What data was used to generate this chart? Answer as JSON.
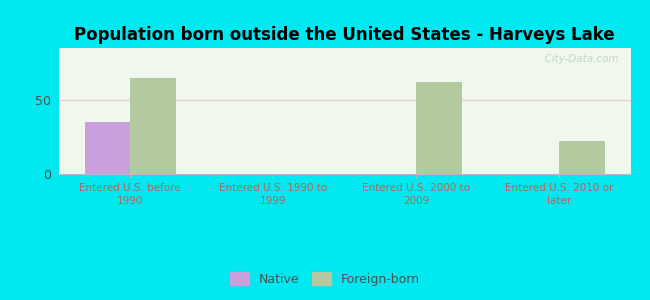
{
  "title": "Population born outside the United States - Harveys Lake",
  "categories": [
    "Entered U.S. before\n1990",
    "Entered U.S. 1990 to\n1999",
    "Entered U.S. 2000 to\n2009",
    "Entered U.S. 2010 or\nlater"
  ],
  "native_values": [
    35,
    0,
    0,
    0
  ],
  "foreign_values": [
    65,
    0,
    62,
    22
  ],
  "native_color": "#c9a0dc",
  "foreign_color": "#b5c9a0",
  "background_outer": "#00e8f0",
  "background_inner": "#f0f8ee",
  "ytick_value": 50,
  "ylim": [
    0,
    85
  ],
  "bar_width": 0.32,
  "title_fontsize": 12,
  "tick_label_fontsize": 7.5,
  "legend_fontsize": 9,
  "watermark_text": "  City-Data.com",
  "watermark_color": "#c8d4c8",
  "grid_color": "#f0c8cc",
  "xlabel_color": "#b06858",
  "ytick_color": "#505050"
}
